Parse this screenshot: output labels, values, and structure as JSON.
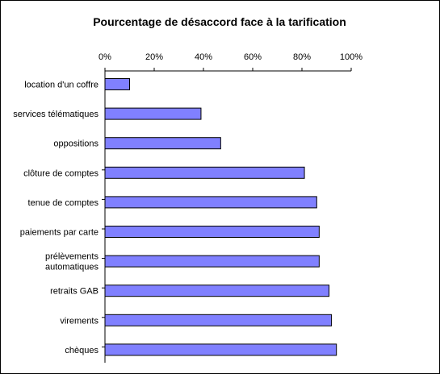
{
  "chart_data": {
    "type": "bar",
    "orientation": "horizontal",
    "title": "Pourcentage de désaccord face à la tarification",
    "xlabel": "",
    "ylabel": "",
    "x_axis_position": "top",
    "xlim": [
      0,
      100
    ],
    "x_ticks": [
      0,
      20,
      40,
      60,
      80,
      100
    ],
    "x_tick_labels": [
      "0%",
      "20%",
      "40%",
      "60%",
      "80%",
      "100%"
    ],
    "grid": false,
    "legend": "none",
    "bar_color": "#8080ff",
    "categories": [
      "location d'un coffre",
      "services télématiques",
      "oppositions",
      "clôture de comptes",
      "tenue de comptes",
      "paiements par carte",
      "prélèvements automatiques",
      "retraits GAB",
      "virements",
      "chèques"
    ],
    "category_lines": [
      [
        "location d'un coffre"
      ],
      [
        "services télématiques"
      ],
      [
        "oppositions"
      ],
      [
        "clôture de comptes"
      ],
      [
        "tenue de comptes"
      ],
      [
        "paiements par carte"
      ],
      [
        "prélèvements",
        "automatiques"
      ],
      [
        "retraits GAB"
      ],
      [
        "virements"
      ],
      [
        "chèques"
      ]
    ],
    "values": [
      10,
      39,
      47,
      81,
      86,
      87,
      87,
      91,
      92,
      94
    ]
  }
}
